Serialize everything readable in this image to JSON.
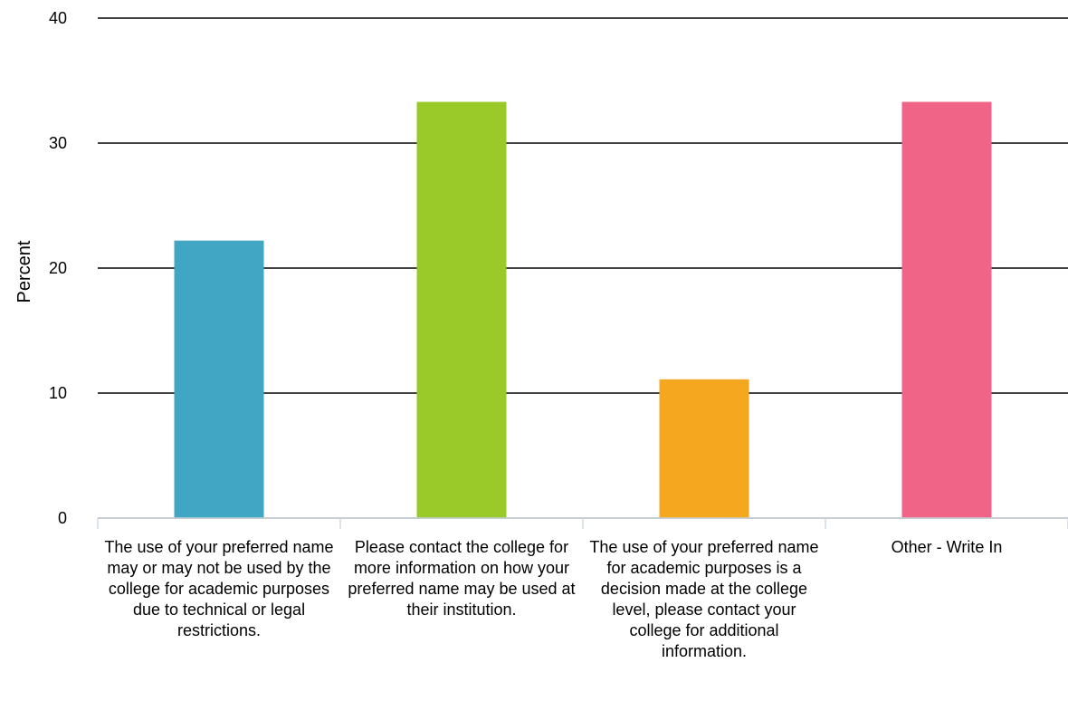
{
  "chart_data": {
    "type": "bar",
    "ylabel": "Percent",
    "ylim": [
      0,
      40
    ],
    "yticks": [
      0,
      10,
      20,
      30,
      40
    ],
    "grid": true,
    "categories": [
      "The use of your preferred name may or may not be used by the college for academic purposes due to technical or legal restrictions.",
      "Please contact the college for more information on how your preferred name may be used at their institution.",
      "The use of your preferred name for academic purposes is a decision made at the college level, please contact your college for additional information.",
      "Other - Write In"
    ],
    "values": [
      22.2,
      33.3,
      11.1,
      33.3
    ],
    "colors": [
      "#41a5c4",
      "#9ac92a",
      "#f5a71f",
      "#f06487"
    ]
  }
}
